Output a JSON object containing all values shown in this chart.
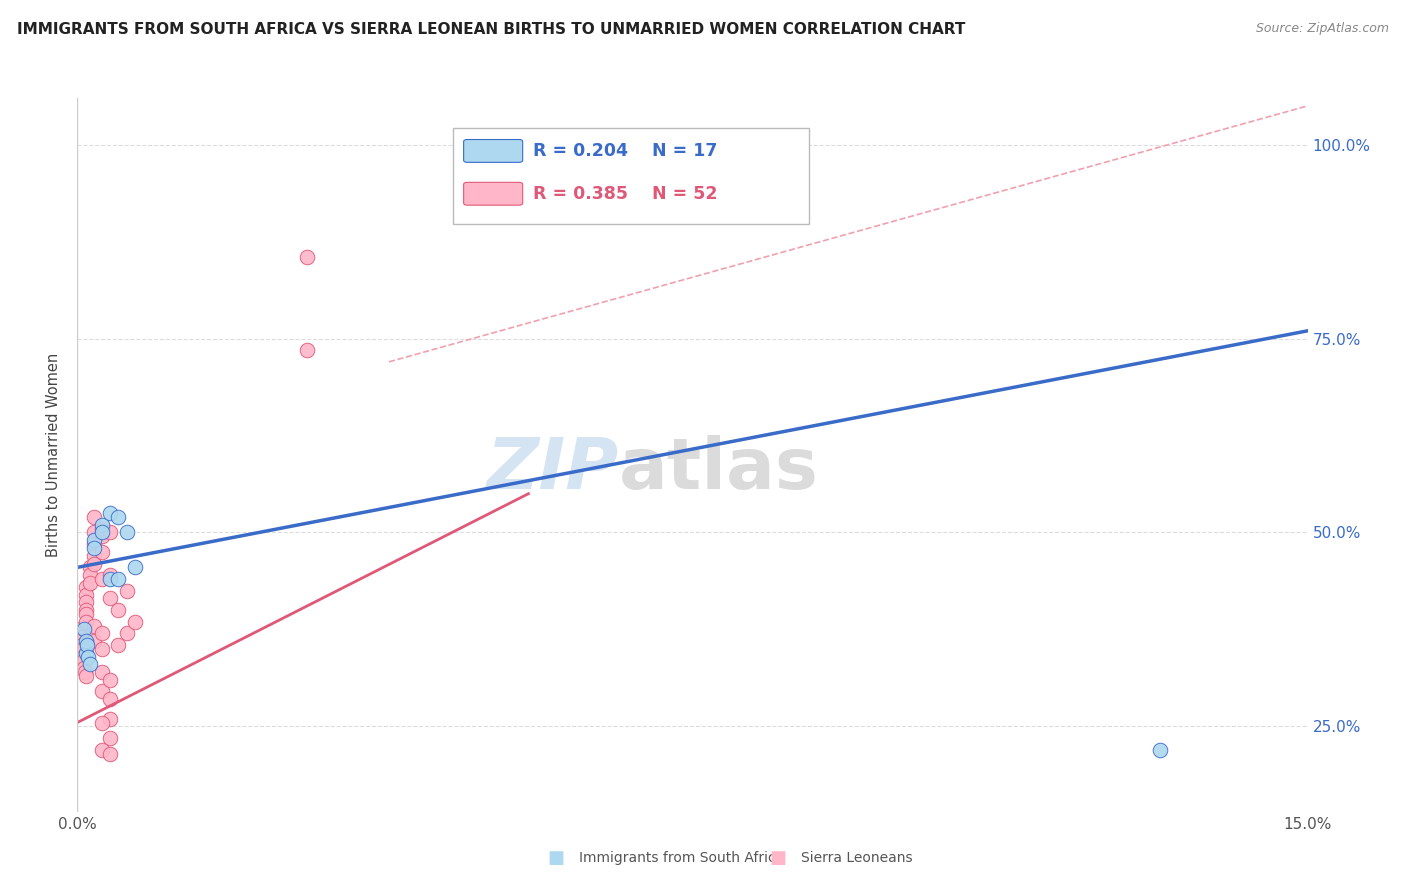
{
  "title": "IMMIGRANTS FROM SOUTH AFRICA VS SIERRA LEONEAN BIRTHS TO UNMARRIED WOMEN CORRELATION CHART",
  "source": "Source: ZipAtlas.com",
  "ylabel": "Births to Unmarried Women",
  "ytick_vals": [
    0.25,
    0.5,
    0.75,
    1.0
  ],
  "ytick_labels": [
    "25.0%",
    "50.0%",
    "75.0%",
    "100.0%"
  ],
  "watermark_zip": "ZIP",
  "watermark_atlas": "atlas",
  "legend_blue_r": "0.204",
  "legend_blue_n": "17",
  "legend_pink_r": "0.385",
  "legend_pink_n": "52",
  "blue_scatter": [
    [
      0.0008,
      0.375
    ],
    [
      0.001,
      0.345
    ],
    [
      0.001,
      0.36
    ],
    [
      0.0012,
      0.355
    ],
    [
      0.0013,
      0.34
    ],
    [
      0.0015,
      0.33
    ],
    [
      0.002,
      0.49
    ],
    [
      0.002,
      0.48
    ],
    [
      0.003,
      0.51
    ],
    [
      0.003,
      0.5
    ],
    [
      0.004,
      0.525
    ],
    [
      0.004,
      0.44
    ],
    [
      0.005,
      0.52
    ],
    [
      0.005,
      0.44
    ],
    [
      0.006,
      0.5
    ],
    [
      0.007,
      0.455
    ],
    [
      0.132,
      0.22
    ]
  ],
  "pink_scatter": [
    [
      0.0003,
      0.375
    ],
    [
      0.0004,
      0.37
    ],
    [
      0.0005,
      0.365
    ],
    [
      0.0005,
      0.36
    ],
    [
      0.0006,
      0.355
    ],
    [
      0.0007,
      0.35
    ],
    [
      0.0007,
      0.34
    ],
    [
      0.0008,
      0.335
    ],
    [
      0.0008,
      0.325
    ],
    [
      0.0009,
      0.32
    ],
    [
      0.001,
      0.315
    ],
    [
      0.001,
      0.43
    ],
    [
      0.001,
      0.42
    ],
    [
      0.001,
      0.41
    ],
    [
      0.001,
      0.4
    ],
    [
      0.001,
      0.395
    ],
    [
      0.001,
      0.385
    ],
    [
      0.0015,
      0.455
    ],
    [
      0.0015,
      0.445
    ],
    [
      0.0015,
      0.435
    ],
    [
      0.002,
      0.52
    ],
    [
      0.002,
      0.5
    ],
    [
      0.002,
      0.485
    ],
    [
      0.002,
      0.47
    ],
    [
      0.002,
      0.46
    ],
    [
      0.002,
      0.38
    ],
    [
      0.002,
      0.36
    ],
    [
      0.003,
      0.505
    ],
    [
      0.003,
      0.495
    ],
    [
      0.003,
      0.475
    ],
    [
      0.003,
      0.44
    ],
    [
      0.003,
      0.37
    ],
    [
      0.003,
      0.35
    ],
    [
      0.003,
      0.32
    ],
    [
      0.003,
      0.295
    ],
    [
      0.004,
      0.5
    ],
    [
      0.004,
      0.445
    ],
    [
      0.004,
      0.415
    ],
    [
      0.004,
      0.31
    ],
    [
      0.004,
      0.285
    ],
    [
      0.004,
      0.26
    ],
    [
      0.005,
      0.4
    ],
    [
      0.005,
      0.355
    ],
    [
      0.006,
      0.425
    ],
    [
      0.006,
      0.37
    ],
    [
      0.007,
      0.385
    ],
    [
      0.028,
      0.855
    ],
    [
      0.028,
      0.735
    ],
    [
      0.003,
      0.255
    ],
    [
      0.004,
      0.235
    ],
    [
      0.003,
      0.22
    ],
    [
      0.004,
      0.215
    ]
  ],
  "blue_line_x": [
    0.0,
    0.15
  ],
  "blue_line_y": [
    0.455,
    0.76
  ],
  "pink_line_x": [
    0.0,
    0.055
  ],
  "pink_line_y": [
    0.255,
    0.55
  ],
  "dashed_line_x": [
    0.038,
    0.15
  ],
  "dashed_line_y": [
    0.72,
    1.05
  ],
  "blue_scatter_color": "#ADD8F0",
  "pink_scatter_color": "#FFB6C8",
  "blue_line_color": "#3A6BC9",
  "pink_line_color": "#E05878",
  "dashed_line_color": "#F0A0B0",
  "background_color": "#FFFFFF",
  "xlim": [
    0.0,
    0.15
  ],
  "ylim": [
    0.14,
    1.06
  ],
  "grid_color": "#DDDDDD",
  "border_color": "#CCCCCC"
}
